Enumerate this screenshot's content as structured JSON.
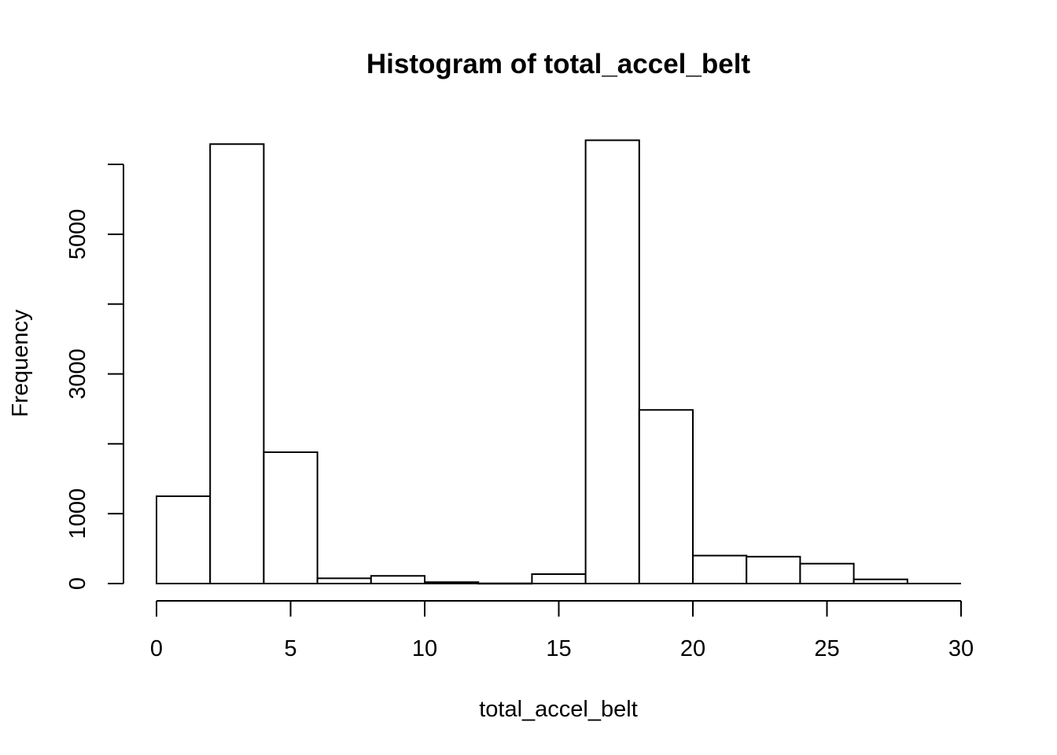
{
  "chart_data": {
    "type": "bar",
    "title": "Histogram of total_accel_belt",
    "xlabel": "total_accel_belt",
    "ylabel": "Frequency",
    "xlim": [
      0,
      30
    ],
    "ylim": [
      0,
      6000
    ],
    "x_ticks": [
      0,
      5,
      10,
      15,
      20,
      25,
      30
    ],
    "y_ticks": [
      0,
      1000,
      2000,
      3000,
      4000,
      5000,
      6000
    ],
    "y_tick_labels": [
      "0",
      "1000",
      "",
      "3000",
      "",
      "5000",
      ""
    ],
    "bins": [
      {
        "start": 0,
        "end": 2,
        "count": 1250
      },
      {
        "start": 2,
        "end": 4,
        "count": 6290
      },
      {
        "start": 4,
        "end": 6,
        "count": 1880
      },
      {
        "start": 6,
        "end": 8,
        "count": 75
      },
      {
        "start": 8,
        "end": 10,
        "count": 110
      },
      {
        "start": 10,
        "end": 12,
        "count": 20
      },
      {
        "start": 12,
        "end": 14,
        "count": 3
      },
      {
        "start": 14,
        "end": 16,
        "count": 135
      },
      {
        "start": 16,
        "end": 18,
        "count": 6345
      },
      {
        "start": 18,
        "end": 20,
        "count": 2485
      },
      {
        "start": 20,
        "end": 22,
        "count": 400
      },
      {
        "start": 22,
        "end": 24,
        "count": 385
      },
      {
        "start": 24,
        "end": 26,
        "count": 285
      },
      {
        "start": 26,
        "end": 28,
        "count": 60
      },
      {
        "start": 28,
        "end": 30,
        "count": 0
      }
    ]
  }
}
